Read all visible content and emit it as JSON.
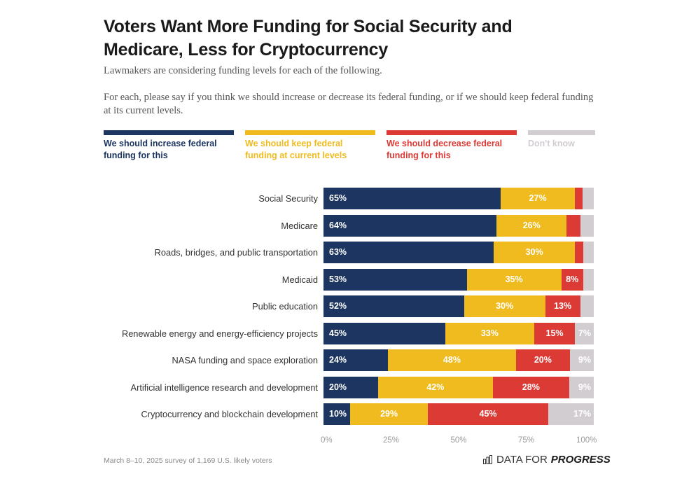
{
  "title": "Voters Want More Funding for Social Security and Medicare, Less for Cryptocurrency",
  "subtitle": [
    "Lawmakers are considering funding levels for each of the following.",
    "For each, please say if you think we should increase or decrease its federal funding, or if we should keep federal funding at its current levels."
  ],
  "footer": {
    "note": "March 8–10, 2025 survey of 1,169 U.S. likely voters",
    "logo_regular": "DATA FOR",
    "logo_bold": "PROGRESS"
  },
  "colors": {
    "increase": "#1d3661",
    "keep": "#f0bb1f",
    "decrease": "#dc3a35",
    "dont_know": "#d1cdd1"
  },
  "chart_data": {
    "type": "bar",
    "orientation": "horizontal-stacked-100",
    "title": "Voters Want More Funding for Social Security and Medicare, Less for Cryptocurrency",
    "xlabel": "",
    "ylabel": "",
    "xlim": [
      0,
      100
    ],
    "x_ticks": [
      "0%",
      "25%",
      "50%",
      "75%",
      "100%"
    ],
    "legend_position": "top",
    "grid": false,
    "categories": [
      "Social Security",
      "Medicare",
      "Roads, bridges, and public transportation",
      "Medicaid",
      "Public education",
      "Renewable energy and energy-efficiency projects",
      "NASA funding and space exploration",
      "Artificial intelligence research and development",
      "Cryptocurrency and blockchain development"
    ],
    "series": [
      {
        "key": "increase",
        "name": "We should increase federal funding for this",
        "values": [
          65,
          64,
          63,
          53,
          52,
          45,
          24,
          20,
          10
        ],
        "labels": [
          "65%",
          "64%",
          "63%",
          "53%",
          "52%",
          "45%",
          "24%",
          "20%",
          "10%"
        ]
      },
      {
        "key": "keep",
        "name": "We should keep federal funding at current levels",
        "values": [
          27,
          26,
          30,
          35,
          30,
          33,
          48,
          42,
          29
        ],
        "labels": [
          "27%",
          "26%",
          "30%",
          "35%",
          "30%",
          "33%",
          "48%",
          "42%",
          "29%"
        ]
      },
      {
        "key": "decrease",
        "name": "We should decrease federal funding for this",
        "values": [
          3,
          5,
          3,
          8,
          13,
          15,
          20,
          28,
          45
        ],
        "labels": [
          "",
          "",
          "",
          "8%",
          "13%",
          "15%",
          "20%",
          "28%",
          "45%"
        ]
      },
      {
        "key": "dont_know",
        "name": "Don't know",
        "values": [
          4,
          5,
          4,
          4,
          5,
          7,
          9,
          9,
          17
        ],
        "labels": [
          "",
          "",
          "",
          "",
          "",
          "7%",
          "9%",
          "9%",
          "17%"
        ]
      }
    ]
  }
}
